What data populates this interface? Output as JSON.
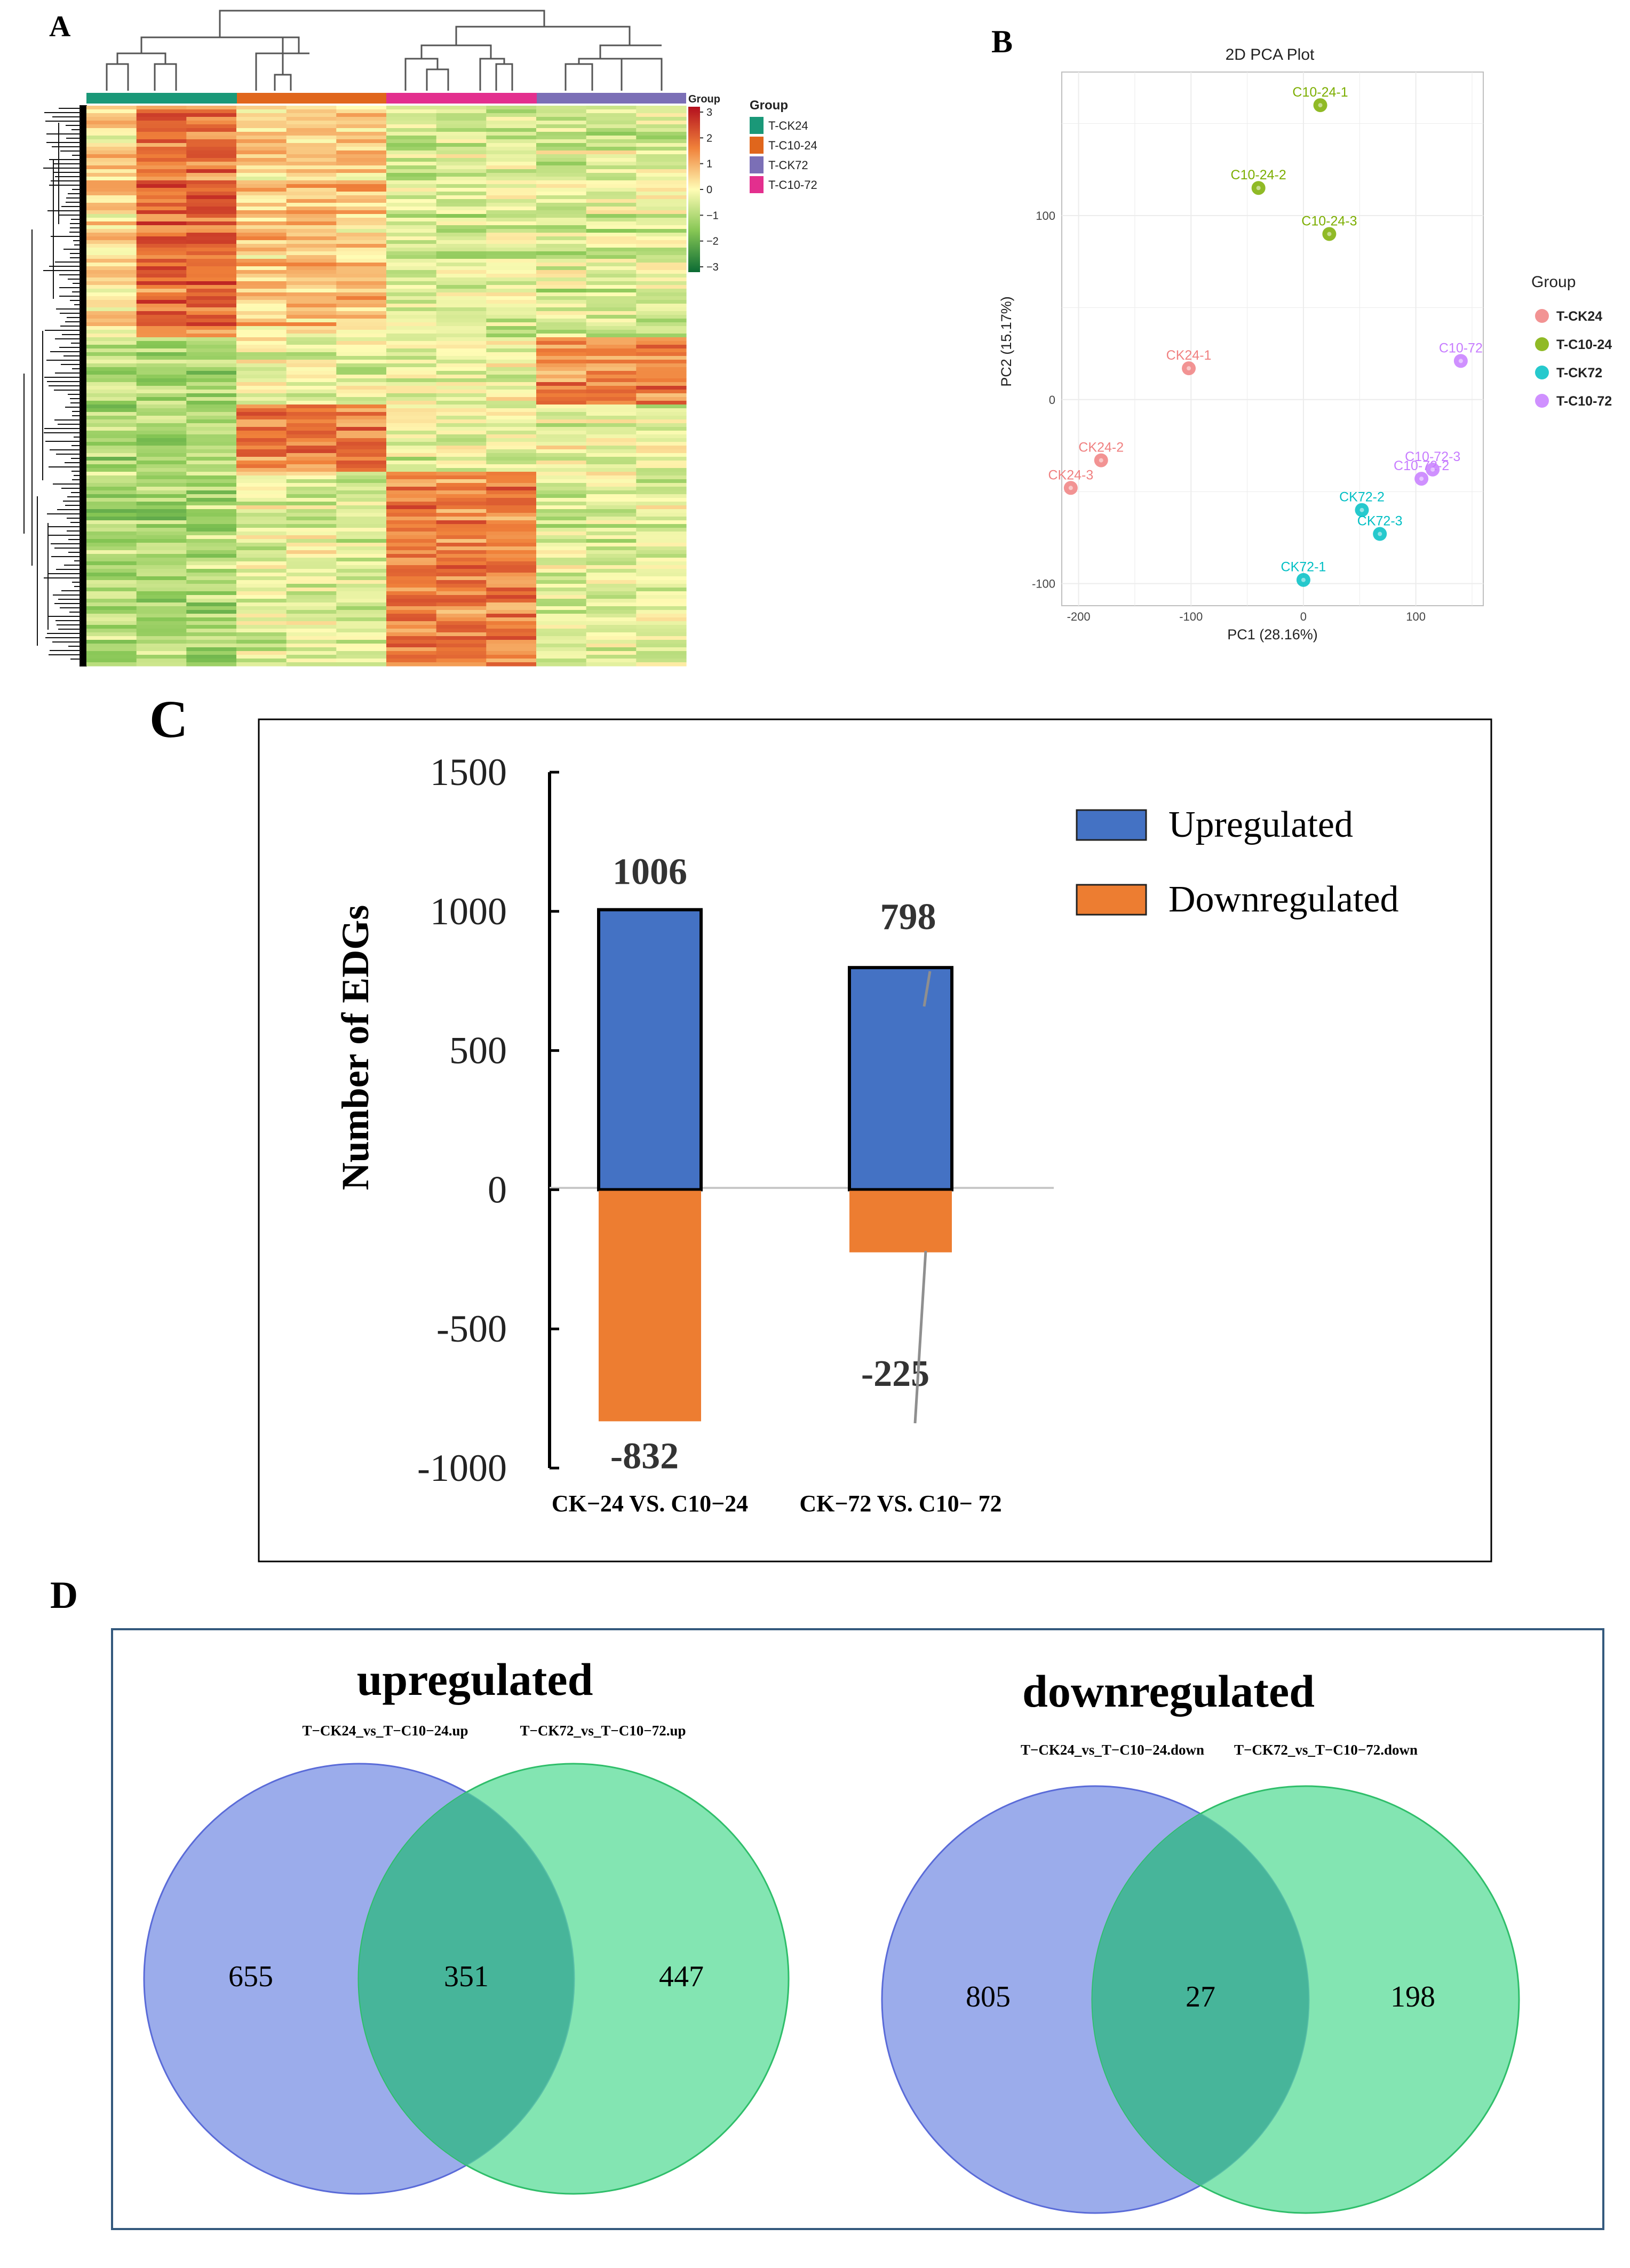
{
  "panel_labels": {
    "a": "A",
    "b": "B",
    "c": "C",
    "d": "D"
  },
  "chart_data": [
    {
      "panel": "A",
      "type": "heatmap",
      "title": "",
      "legend": {
        "title": "Group",
        "groups": [
          {
            "name": "T-CK24",
            "color": "#1a9878"
          },
          {
            "name": "T-C10-24",
            "color": "#e0661c"
          },
          {
            "name": "T-CK72",
            "color": "#7b6fb6"
          },
          {
            "name": "T-C10-72",
            "color": "#e32f8e"
          }
        ]
      },
      "column_groups": [
        "T-CK24",
        "T-C10-24",
        "T-C10-72",
        "T-CK72"
      ],
      "colorbar": {
        "title": "Group",
        "ticks": [
          "3",
          "2",
          "1",
          "0",
          "−1",
          "−2",
          "−3"
        ],
        "range": [
          -3,
          3
        ]
      }
    },
    {
      "panel": "B",
      "type": "scatter",
      "title": "2D PCA Plot",
      "xlabel": "PC1 (28.16%)",
      "ylabel": "PC2 (15.17%)",
      "xlim": [
        -215,
        160
      ],
      "ylim": [
        -112,
        178
      ],
      "xticks": [
        "-200",
        "-100",
        "0",
        "100"
      ],
      "yticks": [
        "100",
        "0",
        "-100"
      ],
      "legend_title": "Group",
      "series": [
        {
          "name": "T-CK24",
          "color": "#f08080",
          "points": [
            {
              "label": "CK24-1",
              "x": -102,
              "y": 17
            },
            {
              "label": "CK24-2",
              "x": -180,
              "y": -33
            },
            {
              "label": "CK24-3",
              "x": -207,
              "y": -48
            }
          ]
        },
        {
          "name": "T-C10-24",
          "color": "#7cae00",
          "points": [
            {
              "label": "C10-24-1",
              "x": 15,
              "y": 160
            },
            {
              "label": "C10-24-2",
              "x": -40,
              "y": 115
            },
            {
              "label": "C10-24-3",
              "x": 23,
              "y": 90
            }
          ]
        },
        {
          "name": "T-CK72",
          "color": "#00bfc4",
          "points": [
            {
              "label": "CK72-1",
              "x": 0,
              "y": -98
            },
            {
              "label": "CK72-2",
              "x": 52,
              "y": -60
            },
            {
              "label": "CK72-3",
              "x": 68,
              "y": -73
            }
          ]
        },
        {
          "name": "T-C10-72",
          "color": "#c77cff",
          "points": [
            {
              "label": "C10-72",
              "x": 140,
              "y": 21
            },
            {
              "label": "C10-72-2",
              "x": 105,
              "y": -43
            },
            {
              "label": "C10-72-3",
              "x": 115,
              "y": -38
            }
          ]
        }
      ]
    },
    {
      "panel": "C",
      "type": "bar",
      "title": "",
      "ylabel": "Number of EDGs",
      "xlabel": "",
      "categories": [
        "CK−24 VS. C10−24",
        "CK−72 VS.  C10− 72"
      ],
      "ylim": [
        -1000,
        1500
      ],
      "yticks": [
        "1500",
        "1000",
        "500",
        "0",
        "-500",
        "-1000"
      ],
      "series": [
        {
          "name": "Upregulated",
          "color": "#4472c4",
          "values": [
            1006,
            798
          ],
          "labels": [
            "1006",
            "798"
          ]
        },
        {
          "name": "Downregulated",
          "color": "#ed7d31",
          "values": [
            -832,
            -225
          ],
          "labels": [
            "-832",
            "-225"
          ]
        }
      ]
    },
    {
      "panel": "D",
      "type": "venn",
      "diagrams": [
        {
          "title": "upregulated",
          "set_a": "T−CK24_vs_T−C10−24.up",
          "set_b": "T−CK72_vs_T−C10−72.up",
          "only_a": "655",
          "both": "351",
          "only_b": "447"
        },
        {
          "title": "downregulated",
          "set_a": "T−CK24_vs_T−C10−24.down",
          "set_b": "T−CK72_vs_T−C10−72.down",
          "only_a": "805",
          "both": "27",
          "only_b": "198"
        }
      ],
      "colors": {
        "a": "#8a9de8",
        "b": "#5adc98",
        "overlap": "#47b59a"
      }
    }
  ]
}
